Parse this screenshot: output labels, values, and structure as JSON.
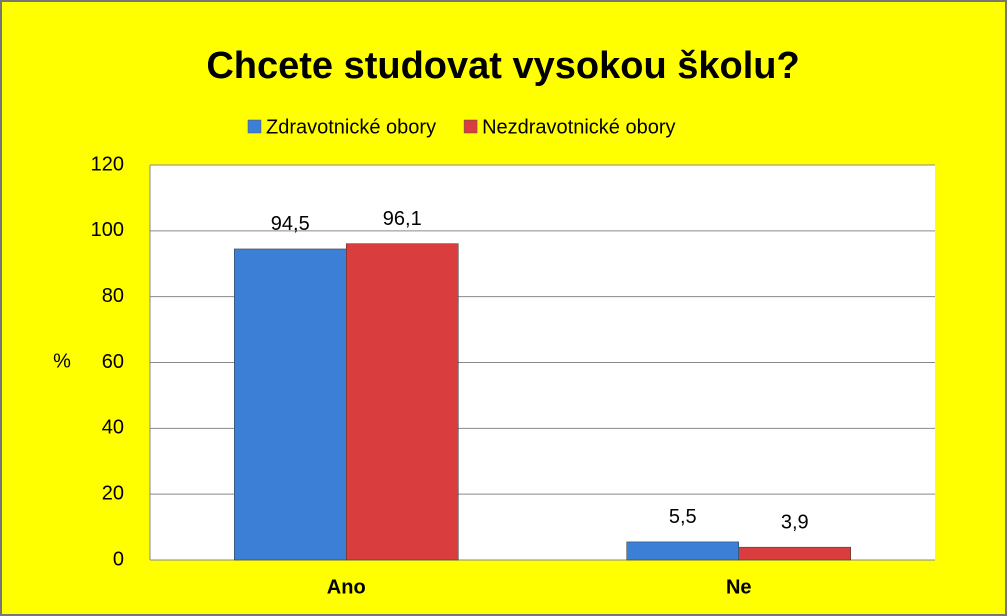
{
  "chart_data": {
    "type": "bar",
    "title": "Chcete studovat vysokou školu?",
    "ylabel": "%",
    "categories": [
      "Ano",
      "Ne"
    ],
    "series": [
      {
        "name": "Zdravotnické obory",
        "color": "#3b7fd6",
        "values": [
          94.5,
          5.5
        ],
        "value_labels": [
          "94,5",
          "5,5"
        ]
      },
      {
        "name": "Nezdravotnické obory",
        "color": "#d93d3d",
        "values": [
          96.1,
          3.9
        ],
        "value_labels": [
          "96,1",
          "3,9"
        ]
      }
    ],
    "ylim": [
      0,
      120
    ],
    "yticks": [
      0,
      20,
      40,
      60,
      80,
      100,
      120
    ],
    "grid": true,
    "legend": "top"
  }
}
